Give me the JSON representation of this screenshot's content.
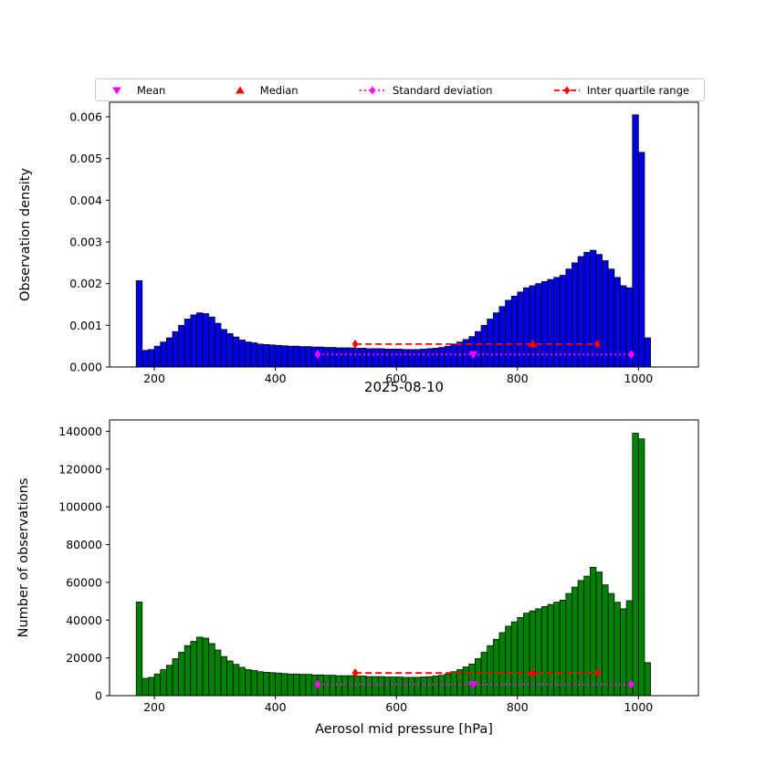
{
  "figure_bg": "#ffffff",
  "legend": {
    "items": [
      {
        "label": "Mean",
        "marker": "triangle-down",
        "color": "#ff00ff"
      },
      {
        "label": "Median",
        "marker": "triangle-up",
        "color": "#ff0000"
      },
      {
        "label": "Standard deviation",
        "marker": "line-dotted-diamond",
        "color": "#ff00ff"
      },
      {
        "label": "Inter quartile range",
        "marker": "line-dashed-diamond",
        "color": "#ff0000"
      }
    ]
  },
  "marker_colors": {
    "mean": "#ff00ff",
    "median": "#ff0000",
    "std": "#ff00ff",
    "iqr": "#ff0000"
  },
  "chart_data": [
    {
      "type": "bar",
      "id": "density-histogram",
      "ylabel": "Observation density",
      "bar_color": "#0000e0",
      "edge_color": "#000000",
      "bin_start": 170,
      "bin_width": 10,
      "xlim": [
        126,
        1099
      ],
      "ylim": [
        0,
        0.00635
      ],
      "xticks": [
        200,
        400,
        600,
        800,
        1000
      ],
      "yticks": [
        0,
        0.001,
        0.002,
        0.003,
        0.004,
        0.005,
        0.006
      ],
      "ytick_labels": [
        "0.000",
        "0.001",
        "0.002",
        "0.003",
        "0.004",
        "0.005",
        "0.006"
      ],
      "values": [
        0.00207,
        0.0004,
        0.00042,
        0.0005,
        0.0006,
        0.0007,
        0.00085,
        0.001,
        0.00115,
        0.00125,
        0.0013,
        0.00128,
        0.0012,
        0.00105,
        0.0009,
        0.0008,
        0.00072,
        0.00065,
        0.0006,
        0.00058,
        0.00055,
        0.00054,
        0.00053,
        0.00052,
        0.00051,
        0.0005,
        0.0005,
        0.00049,
        0.00049,
        0.00048,
        0.00048,
        0.00047,
        0.00047,
        0.00046,
        0.00046,
        0.00046,
        0.00045,
        0.00045,
        0.00044,
        0.00044,
        0.00044,
        0.00043,
        0.00043,
        0.00043,
        0.00042,
        0.00042,
        0.00042,
        0.00043,
        0.00044,
        0.00045,
        0.00047,
        0.0005,
        0.00055,
        0.0006,
        0.00066,
        0.00073,
        0.00085,
        0.001,
        0.00115,
        0.0013,
        0.00145,
        0.0016,
        0.0017,
        0.0018,
        0.0019,
        0.00195,
        0.002,
        0.00205,
        0.0021,
        0.00215,
        0.0022,
        0.00235,
        0.0025,
        0.00265,
        0.00275,
        0.0028,
        0.0027,
        0.00255,
        0.00235,
        0.00215,
        0.00195,
        0.0019,
        0.00605,
        0.00515,
        0.0007
      ],
      "markers": {
        "mean": 727,
        "median": 825,
        "std_range": [
          470,
          988
        ],
        "iqr_range": [
          532,
          932
        ],
        "std_y": 0.0003,
        "iqr_y": 0.00055
      }
    },
    {
      "type": "bar",
      "id": "observations-histogram",
      "title": "2025-08-10",
      "ylabel": "Number of observations",
      "xlabel": "Aerosol mid pressure [hPa]",
      "bar_color": "#008000",
      "edge_color": "#000000",
      "bin_start": 170,
      "bin_width": 10,
      "xlim": [
        126,
        1099
      ],
      "ylim": [
        0,
        146000
      ],
      "xticks": [
        200,
        400,
        600,
        800,
        1000
      ],
      "yticks": [
        0,
        20000,
        40000,
        60000,
        80000,
        100000,
        120000,
        140000
      ],
      "ytick_labels": [
        "0",
        "20000",
        "40000",
        "60000",
        "80000",
        "100000",
        "120000",
        "140000"
      ],
      "values": [
        49600,
        9200,
        9700,
        11500,
        13800,
        16100,
        19600,
        23000,
        26500,
        28800,
        31000,
        30500,
        27600,
        24200,
        20700,
        18400,
        16600,
        15000,
        13800,
        13300,
        12700,
        12400,
        12200,
        12000,
        11700,
        11500,
        11500,
        11300,
        11300,
        11000,
        11000,
        10800,
        10800,
        10600,
        10600,
        10600,
        10400,
        10400,
        10100,
        10100,
        10100,
        9900,
        9900,
        9900,
        9700,
        9700,
        9700,
        9900,
        10100,
        10400,
        10800,
        11500,
        12700,
        13800,
        15200,
        16800,
        19600,
        23000,
        26500,
        29900,
        33400,
        36800,
        39100,
        41400,
        43700,
        44900,
        46000,
        47200,
        48300,
        49500,
        50600,
        54100,
        57500,
        61000,
        63300,
        68000,
        65500,
        58700,
        54100,
        49500,
        46000,
        50300,
        139000,
        136000,
        17500
      ],
      "markers": {
        "mean": 727,
        "median": 825,
        "std_range": [
          470,
          988
        ],
        "iqr_range": [
          532,
          932
        ],
        "std_y": 6000,
        "iqr_y": 12000
      }
    }
  ]
}
